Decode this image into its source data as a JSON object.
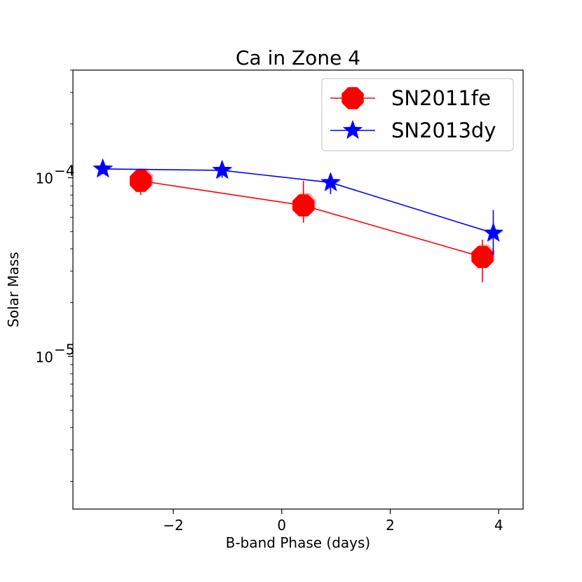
{
  "chart_data": {
    "type": "line",
    "title": "Ca in Zone 4",
    "xlabel": "B-band Phase (days)",
    "ylabel": "Solar Mass",
    "xlim": [
      -3.85,
      4.45
    ],
    "ylim": [
      1.4e-06,
      0.0004
    ],
    "yscale": "log",
    "xticks": [
      -2,
      0,
      2,
      4
    ],
    "xtick_labels": [
      "−2",
      "0",
      "2",
      "4"
    ],
    "yticks": [
      1e-05,
      0.0001
    ],
    "ytick_base": "10",
    "ytick_exponents": [
      "−5",
      "−4"
    ],
    "legend_position": "upper right",
    "series": [
      {
        "name": "SN2011fe",
        "color": "#ff0000",
        "marker": "octagon",
        "x": [
          -2.6,
          0.4,
          3.7
        ],
        "y": [
          9.6e-05,
          7e-05,
          3.6e-05
        ],
        "yerr_low": [
          8e-05,
          5.6e-05,
          2.6e-05
        ],
        "yerr_high": [
          0.000102,
          9.6e-05,
          4.5e-05
        ]
      },
      {
        "name": "SN2013dy",
        "color": "#0000ff",
        "marker": "star",
        "x": [
          -3.3,
          -1.1,
          0.9,
          3.9
        ],
        "y": [
          0.000112,
          0.00011,
          9.4e-05,
          4.9e-05
        ],
        "yerr_low": [
          0.000105,
          0.0001,
          8.1e-05,
          3.7e-05
        ],
        "yerr_high": [
          0.000118,
          0.000118,
          0.000103,
          6.6e-05
        ]
      }
    ]
  }
}
